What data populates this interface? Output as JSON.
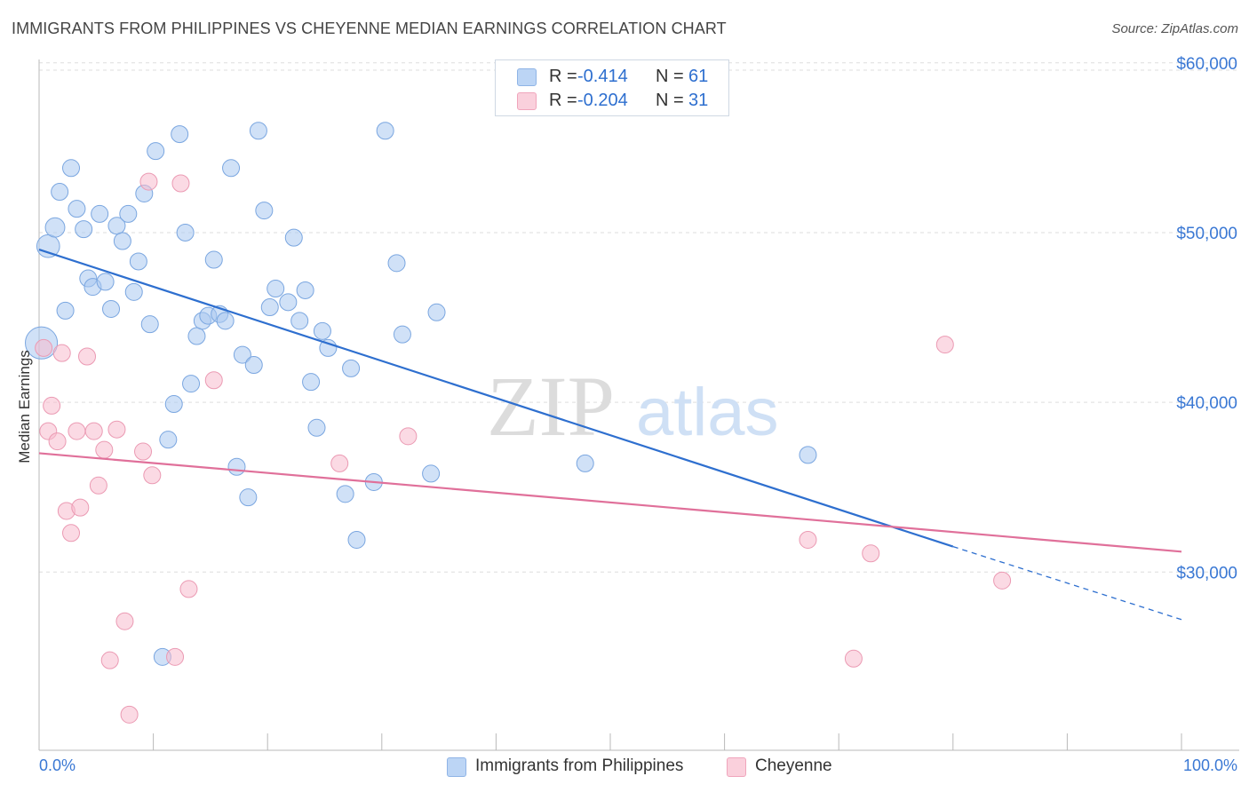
{
  "title": "IMMIGRANTS FROM PHILIPPINES VS CHEYENNE MEDIAN EARNINGS CORRELATION CHART",
  "source": "Source: ZipAtlas.com",
  "watermark": {
    "zip": "ZIP",
    "atlas": "atlas"
  },
  "legend": {
    "series1": {
      "r_label": "R =",
      "r_value": "-0.414",
      "n_label": "N =",
      "n_value": "61"
    },
    "series2": {
      "r_label": "R =",
      "r_value": "-0.204",
      "n_label": "N =",
      "n_value": "31"
    }
  },
  "bottom_legend": {
    "series1": "Immigrants from Philippines",
    "series2": "Cheyenne"
  },
  "chart_data": {
    "type": "scatter",
    "title": "IMMIGRANTS FROM PHILIPPINES VS CHEYENNE MEDIAN EARNINGS CORRELATION CHART",
    "xlabel": "",
    "ylabel": "Median Earnings",
    "xlim": [
      0,
      100
    ],
    "ylim": [
      19500,
      62000
    ],
    "x_tick_labels": [
      "0.0%",
      "100.0%"
    ],
    "y_ticks": [
      30000,
      40000,
      50000,
      60000
    ],
    "y_tick_labels": [
      "$30,000",
      "$40,000",
      "$50,000",
      "$60,000"
    ],
    "grid": "horizontal dashed",
    "legend_position": "top-center",
    "colors": {
      "series1": "#a9c8f0",
      "series1_line": "#2e6fcf",
      "series2": "#f7bccd",
      "series2_line": "#e0709a"
    },
    "series": [
      {
        "name": "Immigrants from Philippines",
        "color": "#a9c8f0",
        "trend": {
          "x": [
            0,
            80
          ],
          "y": [
            49000,
            31500
          ],
          "dashed_to": [
            100,
            27200
          ]
        },
        "points": [
          [
            0.2,
            43500,
            1.9
          ],
          [
            0.8,
            49200,
            1.35
          ],
          [
            1.4,
            50300,
            1.15
          ],
          [
            1.8,
            52400,
            1
          ],
          [
            2.3,
            45400,
            1
          ],
          [
            2.8,
            53800,
            1
          ],
          [
            3.3,
            51400,
            1
          ],
          [
            3.9,
            50200,
            1
          ],
          [
            4.3,
            47300,
            1
          ],
          [
            4.7,
            46800,
            1
          ],
          [
            5.3,
            51100,
            1
          ],
          [
            5.8,
            47100,
            1
          ],
          [
            6.3,
            45500,
            1
          ],
          [
            6.8,
            50400,
            1
          ],
          [
            7.3,
            49500,
            1
          ],
          [
            7.8,
            51100,
            1
          ],
          [
            8.3,
            46500,
            1
          ],
          [
            8.7,
            48300,
            1
          ],
          [
            9.2,
            52300,
            1
          ],
          [
            9.7,
            44600,
            1
          ],
          [
            10.2,
            54800,
            1
          ],
          [
            10.8,
            25000,
            1
          ],
          [
            11.3,
            37800,
            1
          ],
          [
            11.8,
            39900,
            1
          ],
          [
            12.3,
            55800,
            1
          ],
          [
            12.8,
            50000,
            1
          ],
          [
            13.3,
            41100,
            1
          ],
          [
            13.8,
            43900,
            1
          ],
          [
            14.3,
            44800,
            1
          ],
          [
            14.8,
            45100,
            1
          ],
          [
            15.3,
            48400,
            1
          ],
          [
            15.8,
            45200,
            1
          ],
          [
            16.3,
            44800,
            1
          ],
          [
            16.8,
            53800,
            1
          ],
          [
            17.3,
            36200,
            1
          ],
          [
            17.8,
            42800,
            1
          ],
          [
            18.3,
            34400,
            1
          ],
          [
            18.8,
            42200,
            1
          ],
          [
            19.2,
            56000,
            1
          ],
          [
            19.7,
            51300,
            1
          ],
          [
            20.2,
            45600,
            1
          ],
          [
            20.7,
            46700,
            1
          ],
          [
            21.8,
            45900,
            1
          ],
          [
            22.3,
            49700,
            1
          ],
          [
            22.8,
            44800,
            1
          ],
          [
            23.3,
            46600,
            1
          ],
          [
            23.8,
            41200,
            1
          ],
          [
            24.3,
            38500,
            1
          ],
          [
            24.8,
            44200,
            1
          ],
          [
            25.3,
            43200,
            1
          ],
          [
            26.8,
            34600,
            1
          ],
          [
            27.3,
            42000,
            1
          ],
          [
            27.8,
            31900,
            1
          ],
          [
            29.3,
            35300,
            1
          ],
          [
            30.3,
            56000,
            1
          ],
          [
            31.3,
            48200,
            1
          ],
          [
            31.8,
            44000,
            1
          ],
          [
            34.3,
            35800,
            1
          ],
          [
            34.8,
            45300,
            1
          ],
          [
            47.8,
            36400,
            1
          ],
          [
            67.3,
            36900,
            1
          ]
        ]
      },
      {
        "name": "Cheyenne",
        "color": "#f7bccd",
        "trend": {
          "x": [
            0,
            100
          ],
          "y": [
            37000,
            31200
          ]
        },
        "points": [
          [
            0.4,
            43200,
            1
          ],
          [
            0.8,
            38300,
            1
          ],
          [
            1.1,
            39800,
            1
          ],
          [
            1.6,
            37700,
            1
          ],
          [
            2.0,
            42900,
            1
          ],
          [
            2.4,
            33600,
            1
          ],
          [
            2.8,
            32300,
            1
          ],
          [
            3.3,
            38300,
            1
          ],
          [
            3.6,
            33800,
            1
          ],
          [
            4.2,
            42700,
            1
          ],
          [
            4.8,
            38300,
            1
          ],
          [
            5.2,
            35100,
            1
          ],
          [
            5.7,
            37200,
            1
          ],
          [
            6.2,
            24800,
            1
          ],
          [
            6.8,
            38400,
            1
          ],
          [
            7.5,
            27100,
            1
          ],
          [
            7.9,
            21600,
            1
          ],
          [
            9.1,
            37100,
            1
          ],
          [
            9.6,
            53000,
            1
          ],
          [
            9.9,
            35700,
            1
          ],
          [
            11.9,
            25000,
            1
          ],
          [
            12.4,
            52900,
            1
          ],
          [
            13.1,
            29000,
            1
          ],
          [
            15.3,
            41300,
            1
          ],
          [
            26.3,
            36400,
            1
          ],
          [
            32.3,
            38000,
            1
          ],
          [
            67.3,
            31900,
            1
          ],
          [
            71.3,
            24900,
            1
          ],
          [
            72.8,
            31100,
            1
          ],
          [
            79.3,
            43400,
            1
          ],
          [
            84.3,
            29500,
            1
          ]
        ]
      }
    ]
  }
}
